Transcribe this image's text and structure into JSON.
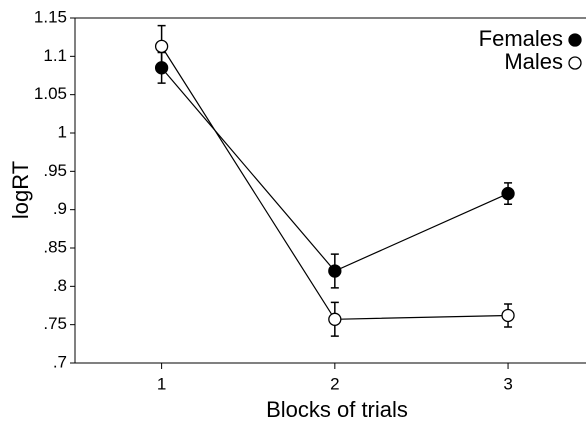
{
  "chart_data": {
    "type": "errorline",
    "x_label": "Blocks of trials",
    "y_label": "logRT",
    "x": [
      1,
      2,
      3
    ],
    "series": [
      {
        "name": "Females",
        "color": "#000000",
        "values": [
          1.085,
          0.82,
          0.921
        ],
        "errors": [
          0.02,
          0.022,
          0.014
        ]
      },
      {
        "name": "Males",
        "color": "#ffffff",
        "values": [
          1.113,
          0.757,
          0.762
        ],
        "errors": [
          0.027,
          0.022,
          0.015
        ]
      }
    ],
    "xlim": [
      0.5,
      3.45
    ],
    "xticks": [
      1,
      2,
      3
    ],
    "ylim": [
      0.7,
      1.15
    ],
    "yticks": [
      {
        "value": 0.7,
        "label": ".7"
      },
      {
        "value": 0.75,
        "label": ".75"
      },
      {
        "value": 0.8,
        "label": ".8"
      },
      {
        "value": 0.85,
        "label": ".85"
      },
      {
        "value": 0.9,
        "label": ".9"
      },
      {
        "value": 0.95,
        "label": ".95"
      },
      1,
      1.05,
      1.1,
      1.15
    ],
    "legend": "top-right"
  }
}
